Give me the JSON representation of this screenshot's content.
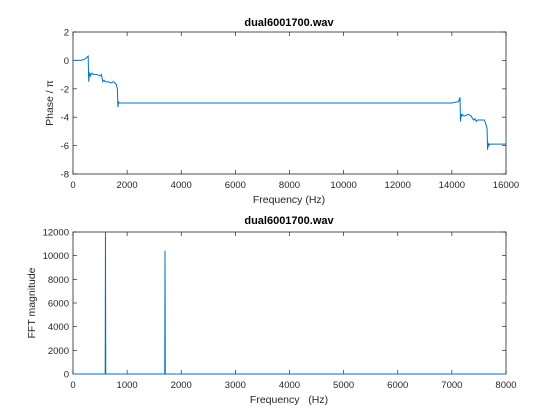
{
  "chart_data": [
    {
      "type": "line",
      "title": "dual6001700.wav",
      "xlabel": "Frequency (Hz)",
      "ylabel": "Phase / π",
      "xlim": [
        0,
        16000
      ],
      "ylim": [
        -8,
        2
      ],
      "xticks": [
        0,
        2000,
        4000,
        6000,
        8000,
        10000,
        12000,
        14000,
        16000
      ],
      "yticks": [
        2,
        0,
        -2,
        -4,
        -6,
        -8
      ],
      "grid": false,
      "series": [
        {
          "color": "#0072bd",
          "x": [
            0,
            150,
            300,
            450,
            560,
            580,
            600,
            620,
            640,
            700,
            760,
            800,
            900,
            1000,
            1050,
            1100,
            1150,
            1200,
            1300,
            1400,
            1500,
            1600,
            1640,
            1660,
            1680,
            1700,
            1720,
            1760,
            1850,
            2000,
            3000,
            4000,
            5000,
            6000,
            7000,
            8000,
            9000,
            10000,
            11000,
            12000,
            13000,
            14000,
            14250,
            14300,
            14320,
            14340,
            14360,
            14380,
            14420,
            14500,
            14600,
            14700,
            14800,
            14850,
            14900,
            14950,
            15000,
            15100,
            15200,
            15260,
            15300,
            15320,
            15340,
            15360,
            15400,
            15500,
            15700,
            16000
          ],
          "y": [
            0,
            0,
            0,
            0.1,
            0.3,
            -1.5,
            -1.0,
            -0.9,
            -1.1,
            -0.9,
            -1.0,
            -1.0,
            -1.0,
            -1.1,
            -1.0,
            -1.5,
            -1.4,
            -1.5,
            -1.5,
            -1.6,
            -1.5,
            -1.7,
            -2.0,
            -3.3,
            -2.9,
            -3.0,
            -3.0,
            -3.0,
            -3.0,
            -3.0,
            -3.0,
            -3.0,
            -3.0,
            -3.0,
            -3.0,
            -3.0,
            -3.0,
            -3.0,
            -3.0,
            -3.0,
            -3.0,
            -3.0,
            -2.9,
            -2.6,
            -4.3,
            -3.8,
            -3.9,
            -3.8,
            -3.9,
            -3.9,
            -3.8,
            -3.9,
            -4.2,
            -4.1,
            -4.3,
            -4.2,
            -4.2,
            -4.2,
            -4.2,
            -4.5,
            -4.8,
            -6.3,
            -5.8,
            -6.0,
            -5.9,
            -5.9,
            -5.9,
            -5.9
          ]
        }
      ]
    },
    {
      "type": "line",
      "title": "dual6001700.wav",
      "xlabel": "Frequency   (Hz)",
      "ylabel": "FFT magnitude",
      "xlim": [
        0,
        8000
      ],
      "ylim": [
        0,
        12000
      ],
      "xticks": [
        0,
        1000,
        2000,
        3000,
        4000,
        5000,
        6000,
        7000,
        8000
      ],
      "yticks": [
        0,
        2000,
        4000,
        6000,
        8000,
        10000,
        12000
      ],
      "grid": false,
      "series": [
        {
          "color": "#0072bd",
          "x": [
            0,
            595,
            600,
            605,
            1695,
            1700,
            1705,
            8000
          ],
          "y": [
            0,
            0,
            12000,
            0,
            0,
            10400,
            0,
            0
          ]
        }
      ]
    }
  ]
}
